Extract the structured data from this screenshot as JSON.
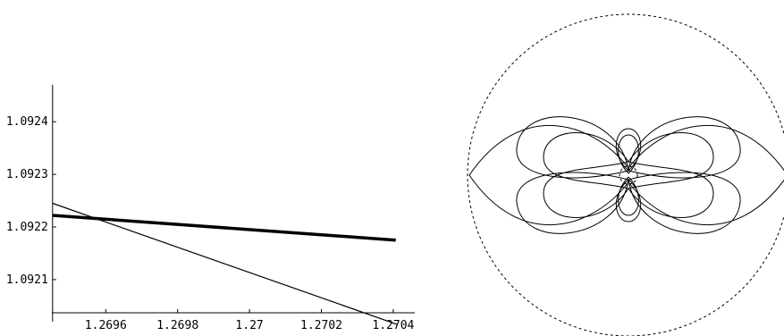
{
  "chart_data": [
    {
      "type": "line",
      "title": "",
      "xlabel": "",
      "ylabel": "",
      "xlim": [
        1.26945,
        1.27046
      ],
      "ylim": [
        1.09202,
        1.09247
      ],
      "xticks": [
        {
          "value": 1.2696,
          "label": "1.2696"
        },
        {
          "value": 1.2698,
          "label": "1.2698"
        },
        {
          "value": 1.27,
          "label": "1.27"
        },
        {
          "value": 1.2702,
          "label": "1.2702"
        },
        {
          "value": 1.2704,
          "label": "1.2704"
        }
      ],
      "yticks": [
        {
          "value": 1.0921,
          "label": "1.0921"
        },
        {
          "value": 1.0922,
          "label": "1.0922"
        },
        {
          "value": 1.0923,
          "label": "1.0923"
        },
        {
          "value": 1.0924,
          "label": "1.0924"
        }
      ],
      "x_axis_at_y": 1.092037,
      "y_axis_at_x": 1.269452,
      "grid": false,
      "series": [
        {
          "values_xy": [
            [
              1.269452,
              1.092245
            ],
            [
              1.27041,
              1.092015
            ]
          ],
          "stroke": "#000000",
          "weight": "thin"
        },
        {
          "values_xy": [
            [
              1.269452,
              1.092222
            ],
            [
              1.270407,
              1.092175
            ]
          ],
          "stroke": "#000000",
          "weight": "thick"
        }
      ]
    },
    {
      "type": "polar-curve",
      "title": "",
      "note_values": "ParametricPlot of a multi-lobed closed curve inside a dashed bounding circle; no axes or labels",
      "boundary": {
        "style": "dashed",
        "radius": 1.0
      },
      "inner_circle": {
        "style": "dashed",
        "radius": 0.11
      },
      "curve": {
        "stroke": "#000000"
      }
    }
  ]
}
